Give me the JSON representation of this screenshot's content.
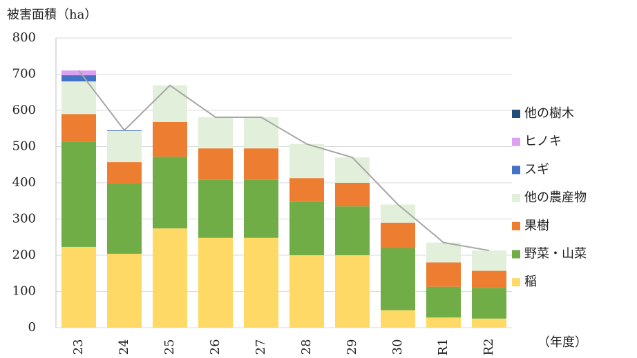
{
  "chart_data": {
    "type": "stacked_bar",
    "ylabel": "被害面積（ha）",
    "xlabel": "（年度）",
    "categories": [
      "23",
      "24",
      "25",
      "26",
      "27",
      "28",
      "29",
      "30",
      "R1",
      "R2"
    ],
    "series": [
      {
        "name": "稲",
        "color": "#ffd966",
        "values": [
          223,
          204,
          274,
          248,
          248,
          200,
          200,
          48,
          28,
          25
        ]
      },
      {
        "name": "野菜・山菜",
        "color": "#70ad47",
        "values": [
          291,
          194,
          198,
          160,
          160,
          147,
          135,
          172,
          85,
          85
        ]
      },
      {
        "name": "果樹",
        "color": "#ed7d31",
        "values": [
          76,
          59,
          96,
          87,
          87,
          66,
          65,
          70,
          67,
          47
        ]
      },
      {
        "name": "他の農産物",
        "color": "#e2efda",
        "values": [
          90,
          86,
          101,
          86,
          86,
          94,
          70,
          50,
          55,
          56
        ]
      },
      {
        "name": "スギ",
        "color": "#4472c4",
        "values": [
          17,
          2,
          0,
          0,
          0,
          0,
          0,
          0,
          0,
          0
        ]
      },
      {
        "name": "ヒノキ",
        "color": "#dda0f0",
        "values": [
          13,
          0,
          0,
          0,
          0,
          0,
          0,
          0,
          0,
          0
        ]
      },
      {
        "name": "他の樹木",
        "color": "#1f4e79",
        "values": [
          0,
          0,
          0,
          0,
          0,
          0,
          0,
          0,
          0,
          0
        ]
      }
    ],
    "ylim": [
      0,
      800
    ],
    "yticks": [
      0,
      100,
      200,
      300,
      400,
      500,
      600,
      700,
      800
    ],
    "grid": true
  }
}
